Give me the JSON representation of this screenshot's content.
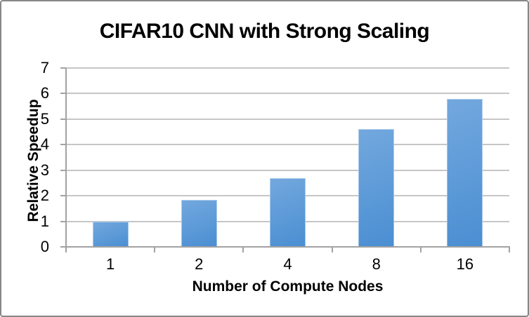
{
  "window": {
    "background_color": "#ffffff",
    "border_color": "#878787"
  },
  "chart_data": {
    "type": "bar",
    "title": "CIFAR10 CNN with Strong Scaling",
    "xlabel": "Number of Compute Nodes",
    "ylabel": "Relative Speedup",
    "categories": [
      "1",
      "2",
      "4",
      "8",
      "16"
    ],
    "values": [
      1.0,
      1.85,
      2.7,
      4.6,
      5.8
    ],
    "ylim": [
      0,
      7
    ],
    "yticks": [
      0,
      1,
      2,
      3,
      4,
      5,
      6,
      7
    ],
    "grid": "horizontal",
    "legend": "none",
    "bar_color_top": "#73a8de",
    "bar_color_bottom": "#4a8ed2",
    "gridline_color": "#c6c6c6",
    "axis_color": "#a2a2a2",
    "text_color": "#000000"
  }
}
